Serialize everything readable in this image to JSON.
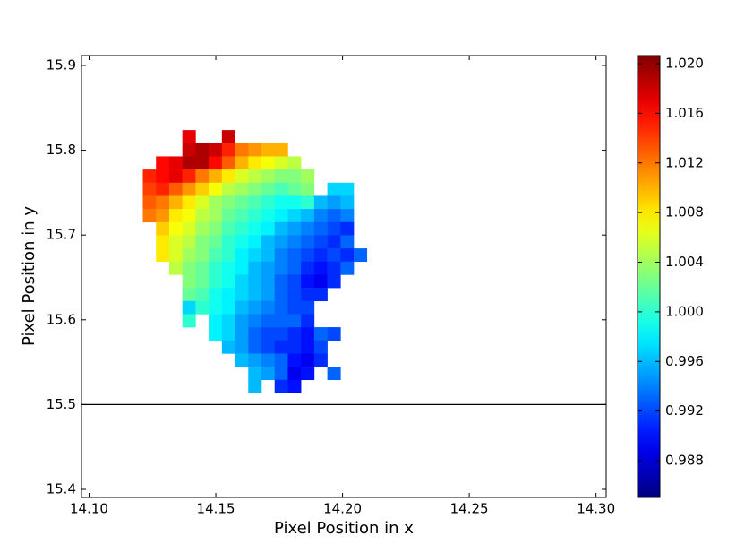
{
  "chart_data": {
    "type": "heatmap",
    "xlabel": "Pixel Position in x",
    "ylabel": "Pixel Position in y",
    "x": [
      14.1238,
      14.129,
      14.1342,
      14.1394,
      14.1446,
      14.1498,
      14.155,
      14.1602,
      14.1654,
      14.1706,
      14.1758,
      14.181,
      14.1862,
      14.1914,
      14.1966,
      14.2018,
      14.207
    ],
    "y": [
      15.816,
      15.8005,
      15.785,
      15.7695,
      15.754,
      15.7385,
      15.723,
      15.7075,
      15.692,
      15.6765,
      15.661,
      15.6455,
      15.63,
      15.6145,
      15.599,
      15.5835,
      15.568,
      15.5525,
      15.537,
      15.5215
    ],
    "values": [
      [
        null,
        null,
        null,
        1.017,
        null,
        null,
        1.018,
        null,
        null,
        null,
        null,
        null,
        null,
        null,
        null,
        null,
        null
      ],
      [
        null,
        null,
        null,
        1.018,
        1.019,
        1.018,
        1.015,
        1.012,
        1.011,
        1.01,
        1.01,
        null,
        null,
        null,
        null,
        null,
        null
      ],
      [
        null,
        1.016,
        1.017,
        1.019,
        1.019,
        1.016,
        1.013,
        1.01,
        1.008,
        1.007,
        1.006,
        1.005,
        null,
        null,
        null,
        null,
        null
      ],
      [
        1.015,
        1.016,
        1.017,
        1.015,
        1.012,
        1.01,
        1.008,
        1.006,
        1.005,
        1.004,
        1.003,
        1.003,
        1.004,
        null,
        null,
        null,
        null
      ],
      [
        1.014,
        1.015,
        1.013,
        1.011,
        1.009,
        1.007,
        1.005,
        1.004,
        1.003,
        1.002,
        1.001,
        1.002,
        1.003,
        null,
        0.997,
        0.997,
        null
      ],
      [
        1.013,
        1.012,
        1.01,
        1.008,
        1.006,
        1.004,
        1.003,
        1.002,
        1.001,
        1.0,
        0.999,
        0.999,
        1.0,
        0.996,
        0.995,
        0.996,
        null
      ],
      [
        1.012,
        1.011,
        1.008,
        1.007,
        1.005,
        1.004,
        1.002,
        1.001,
        1.0,
        0.999,
        0.998,
        0.997,
        0.996,
        0.994,
        0.993,
        0.994,
        null
      ],
      [
        null,
        1.009,
        1.007,
        1.006,
        1.004,
        1.003,
        1.001,
        1.0,
        0.999,
        0.998,
        0.996,
        0.995,
        0.994,
        0.993,
        0.992,
        0.991,
        null
      ],
      [
        null,
        1.008,
        1.006,
        1.005,
        1.003,
        1.002,
        1.0,
        0.999,
        0.998,
        0.996,
        0.995,
        0.994,
        0.993,
        0.992,
        0.991,
        0.993,
        null
      ],
      [
        null,
        1.008,
        1.006,
        1.004,
        1.003,
        1.001,
        1.0,
        0.998,
        0.997,
        0.996,
        0.994,
        0.993,
        0.992,
        0.991,
        0.992,
        0.991,
        0.993
      ],
      [
        null,
        null,
        1.005,
        1.003,
        1.002,
        1.0,
        0.999,
        0.998,
        0.996,
        0.995,
        0.994,
        0.993,
        0.991,
        0.99,
        0.991,
        0.993,
        null
      ],
      [
        null,
        null,
        null,
        1.003,
        1.002,
        1.0,
        0.999,
        0.997,
        0.996,
        0.995,
        0.993,
        0.992,
        0.99,
        0.989,
        0.991,
        null,
        null
      ],
      [
        null,
        null,
        null,
        1.002,
        1.001,
        0.999,
        0.998,
        0.997,
        0.996,
        0.995,
        0.993,
        0.992,
        0.991,
        0.991,
        null,
        null,
        null
      ],
      [
        null,
        null,
        null,
        0.997,
        1.0,
        0.999,
        0.998,
        0.996,
        0.995,
        0.994,
        0.993,
        0.992,
        0.992,
        null,
        null,
        null,
        null
      ],
      [
        null,
        null,
        null,
        1.0,
        null,
        0.998,
        0.997,
        0.995,
        0.994,
        0.993,
        0.993,
        0.993,
        0.991,
        null,
        null,
        null,
        null
      ],
      [
        null,
        null,
        null,
        null,
        null,
        0.998,
        0.997,
        0.995,
        0.993,
        0.992,
        0.992,
        0.991,
        0.99,
        0.993,
        0.992,
        null,
        null
      ],
      [
        null,
        null,
        null,
        null,
        null,
        null,
        0.996,
        0.995,
        0.993,
        0.992,
        0.991,
        0.991,
        0.99,
        0.992,
        null,
        null,
        null
      ],
      [
        null,
        null,
        null,
        null,
        null,
        null,
        null,
        0.996,
        0.995,
        0.994,
        0.993,
        0.99,
        0.989,
        0.991,
        null,
        null,
        null
      ],
      [
        null,
        null,
        null,
        null,
        null,
        null,
        null,
        null,
        0.996,
        0.995,
        0.993,
        0.989,
        0.99,
        null,
        0.993,
        null,
        null
      ],
      [
        null,
        null,
        null,
        null,
        null,
        null,
        null,
        null,
        0.996,
        null,
        0.991,
        0.99,
        null,
        null,
        null,
        null,
        null
      ]
    ],
    "xlim": [
      14.097,
      14.304
    ],
    "ylim": [
      15.3905,
      15.9116
    ],
    "xticks": [
      {
        "value": 14.1,
        "label": "14.10"
      },
      14.15,
      {
        "value": 14.2,
        "label": "14.20"
      },
      14.25,
      {
        "value": 14.3,
        "label": "14.30"
      }
    ],
    "yticks": [
      15.4,
      15.5,
      15.6,
      15.7,
      15.8,
      15.9
    ],
    "hline": 15.5,
    "colormap": "jet",
    "clim": [
      0.98504,
      1.02065
    ],
    "cticks": [
      0.988,
      0.992,
      0.996,
      {
        "value": 1.0,
        "label": "1.000"
      },
      1.004,
      1.008,
      1.012,
      1.016,
      {
        "value": 1.02,
        "label": "1.020"
      }
    ]
  }
}
